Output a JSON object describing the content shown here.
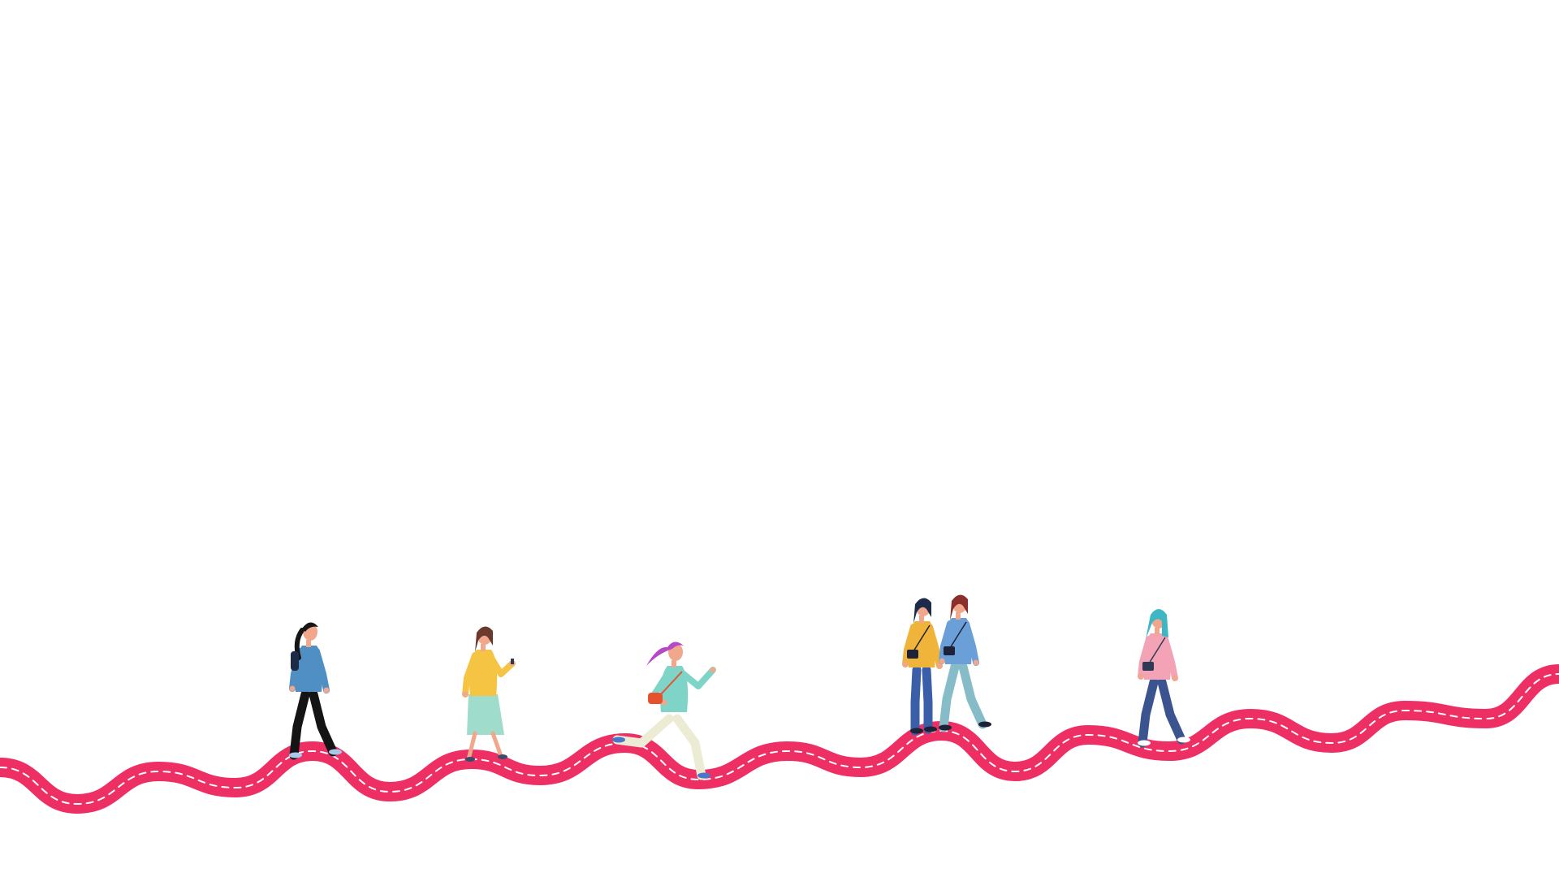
{
  "scene": {
    "road": {
      "color": "#ee2f64",
      "dash_color": "#ffffff"
    },
    "figures": [
      {
        "name": "woman-with-backpack",
        "hair": "#161616",
        "skin": "#f1a78c",
        "top": "#4f8fc3",
        "bottom": "#141414",
        "shoes": "#a9c7e8",
        "accessory": "#1e2b46"
      },
      {
        "name": "woman-with-phone",
        "hair": "#6b3a2c",
        "skin": "#f1a78c",
        "top": "#f6c443",
        "bottom": "#9fdccb",
        "shoes": "#3b4b6b",
        "accessory": "#2e3a55"
      },
      {
        "name": "running-woman",
        "hair": "#b548c6",
        "skin": "#f1a78c",
        "top": "#7fd4c8",
        "bottom": "#ecebd4",
        "shoes": "#4a76c6",
        "accessory": "#e4522f"
      },
      {
        "name": "woman-in-yellow-sweater",
        "hair": "#1f2a4a",
        "skin": "#f1a78c",
        "top": "#f0b43a",
        "bottom": "#3a5ea8",
        "shoes": "#1d2238",
        "accessory": "#1d2238"
      },
      {
        "name": "woman-in-blue-jacket",
        "hair": "#8a2f2a",
        "skin": "#f1a78c",
        "top": "#6a9fd8",
        "bottom": "#86bcc8",
        "shoes": "#1d2238",
        "accessory": "#1d2238"
      },
      {
        "name": "woman-in-pink-jacket",
        "hair": "#3fb6c3",
        "skin": "#f1a78c",
        "top": "#f3a3b5",
        "bottom": "#3b5490",
        "shoes": "#ffffff",
        "accessory": "#2e3a55"
      }
    ]
  }
}
